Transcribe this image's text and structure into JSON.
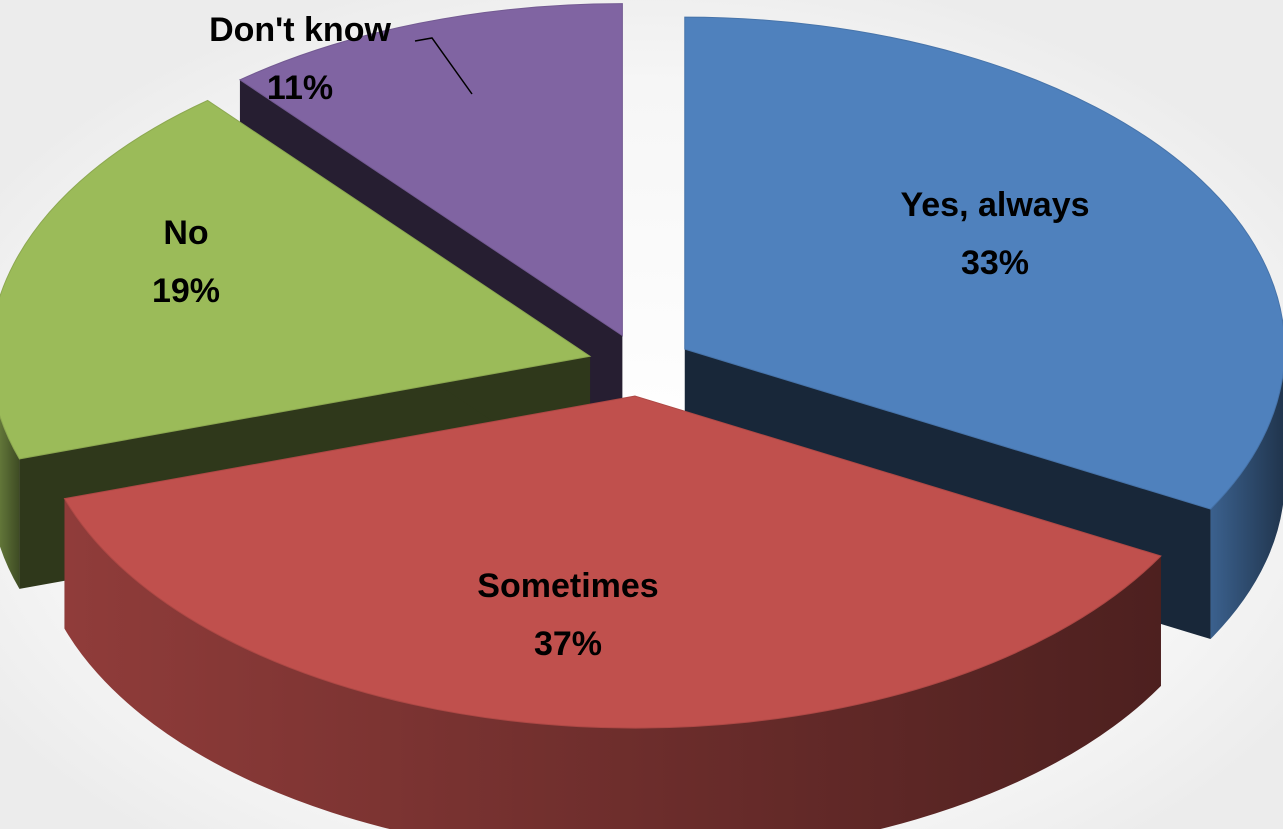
{
  "chart_data": {
    "type": "pie",
    "style": "3d-exploded",
    "title": "",
    "categories": [
      "Yes, always",
      "Sometimes",
      "No",
      "Don't know"
    ],
    "values": [
      33,
      37,
      19,
      11
    ],
    "labels": [
      {
        "name": "Yes, always",
        "value": "33%"
      },
      {
        "name": "Sometimes",
        "value": "37%"
      },
      {
        "name": "No",
        "value": "19%"
      },
      {
        "name": "Don't know",
        "value": "11%"
      }
    ],
    "colors": [
      "#4F81BD",
      "#C0504D",
      "#9BBB59",
      "#8064A2"
    ],
    "legend": "none",
    "data_labels": "category-and-percent"
  }
}
